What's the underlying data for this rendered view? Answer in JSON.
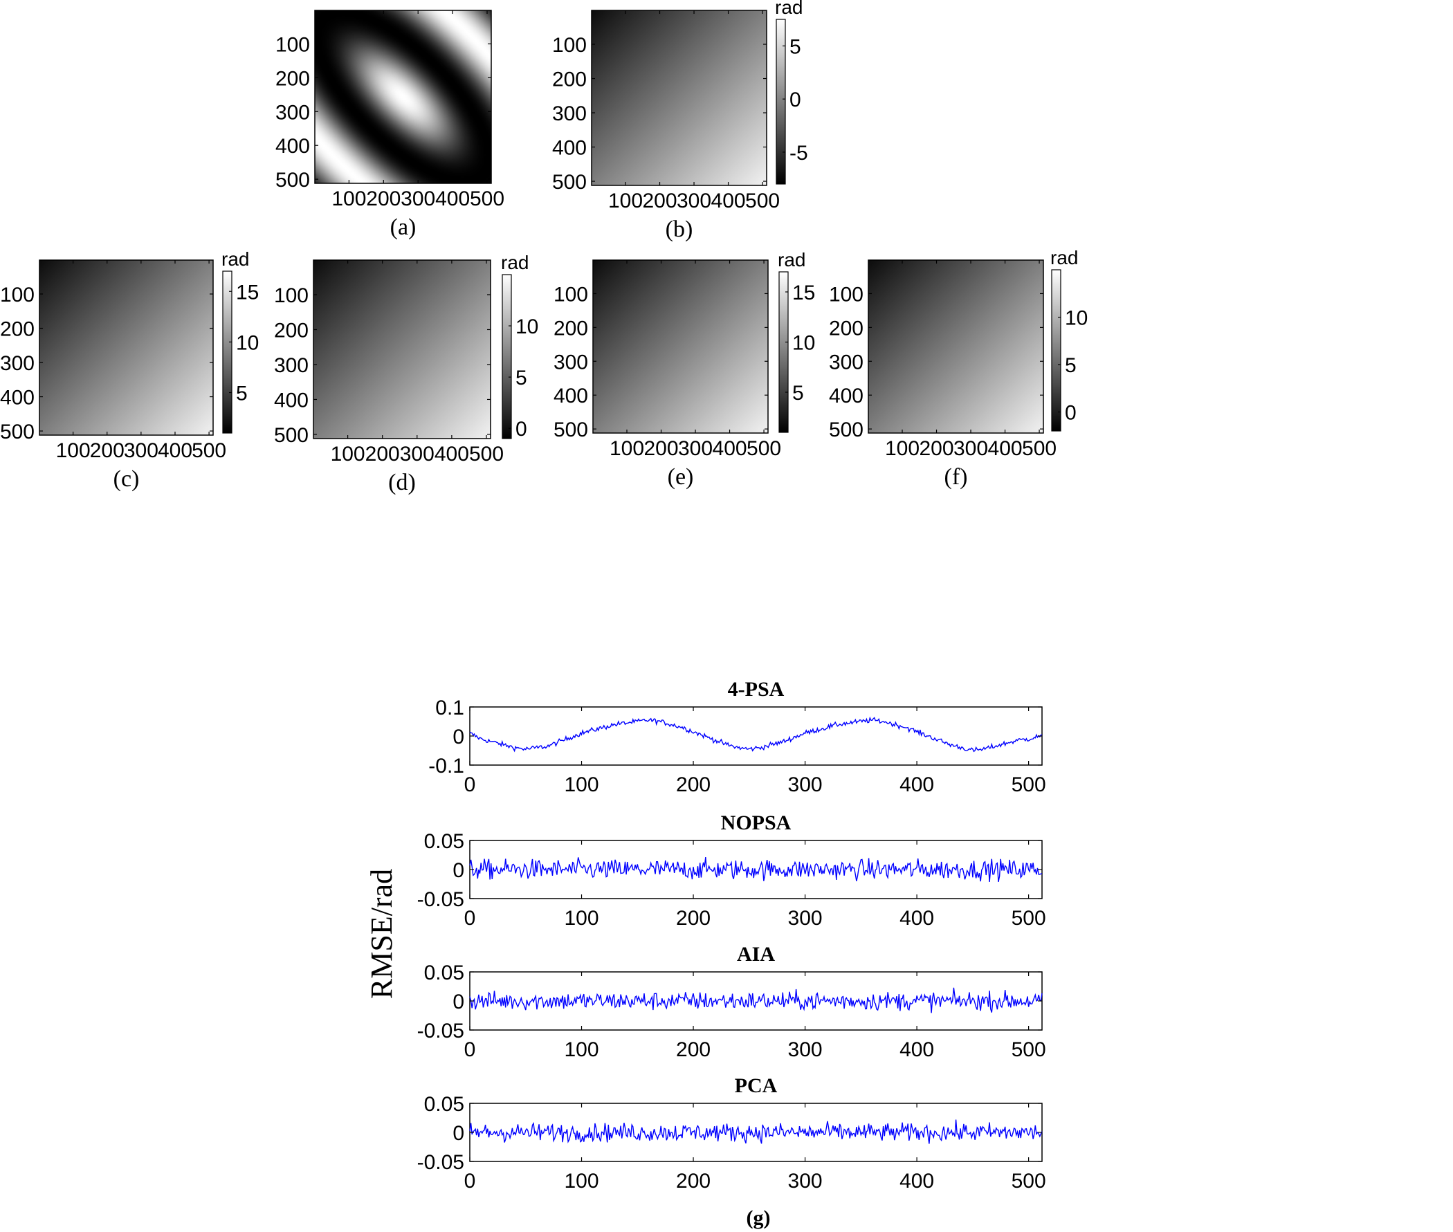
{
  "chart_data": [
    {
      "type": "heatmap",
      "id": "a",
      "caption": "(a)",
      "colormap": "gray",
      "pattern": "elliptical fringes along the main diagonal",
      "xticks": [
        "100",
        "200",
        "300",
        "400",
        "500"
      ],
      "yticks": [
        "100",
        "200",
        "300",
        "400",
        "500"
      ],
      "xlim": [
        1,
        512
      ],
      "ylim": [
        1,
        512
      ],
      "colorbar": null
    },
    {
      "type": "heatmap",
      "id": "b",
      "caption": "(b)",
      "colormap": "gray",
      "pattern": "diagonal linear ramp, dark top-left to light bottom-right",
      "xticks": [
        "100",
        "200",
        "300",
        "400",
        "500"
      ],
      "yticks": [
        "100",
        "200",
        "300",
        "400",
        "500"
      ],
      "xlim": [
        1,
        512
      ],
      "ylim": [
        1,
        512
      ],
      "colorbar": {
        "unit": "rad",
        "range": [
          -8,
          7.5
        ],
        "ticks": [
          5,
          0,
          -5
        ]
      }
    },
    {
      "type": "heatmap",
      "id": "c",
      "caption": "(c)",
      "colormap": "gray",
      "pattern": "diagonal linear ramp, dark top-left to light bottom-right",
      "xticks": [
        "100",
        "200",
        "300",
        "400",
        "500"
      ],
      "yticks": [
        "100",
        "200",
        "300",
        "400",
        "500"
      ],
      "xlim": [
        1,
        512
      ],
      "ylim": [
        1,
        512
      ],
      "colorbar": {
        "unit": "rad",
        "range": [
          1,
          17
        ],
        "ticks": [
          15,
          10,
          5
        ]
      }
    },
    {
      "type": "heatmap",
      "id": "d",
      "caption": "(d)",
      "colormap": "gray",
      "pattern": "diagonal linear ramp, dark top-left to light bottom-right",
      "xticks": [
        "100",
        "200",
        "300",
        "400",
        "500"
      ],
      "yticks": [
        "100",
        "200",
        "300",
        "400",
        "500"
      ],
      "xlim": [
        1,
        512
      ],
      "ylim": [
        1,
        512
      ],
      "colorbar": {
        "unit": "rad",
        "range": [
          -1,
          15
        ],
        "ticks": [
          10,
          5,
          0
        ]
      }
    },
    {
      "type": "heatmap",
      "id": "e",
      "caption": "(e)",
      "colormap": "gray",
      "pattern": "diagonal linear ramp, dark top-left to light bottom-right",
      "xticks": [
        "100",
        "200",
        "300",
        "400",
        "500"
      ],
      "yticks": [
        "100",
        "200",
        "300",
        "400",
        "500"
      ],
      "xlim": [
        1,
        512
      ],
      "ylim": [
        1,
        512
      ],
      "colorbar": {
        "unit": "rad",
        "range": [
          1,
          17
        ],
        "ticks": [
          15,
          10,
          5
        ]
      }
    },
    {
      "type": "heatmap",
      "id": "f",
      "caption": "(f)",
      "colormap": "gray",
      "pattern": "diagonal linear ramp, dark top-left to light bottom-right",
      "xticks": [
        "100",
        "200",
        "300",
        "400",
        "500"
      ],
      "yticks": [
        "100",
        "200",
        "300",
        "400",
        "500"
      ],
      "xlim": [
        1,
        512
      ],
      "ylim": [
        1,
        512
      ],
      "colorbar": {
        "unit": "rad",
        "range": [
          -2,
          15
        ],
        "ticks": [
          10,
          5,
          0
        ]
      }
    },
    {
      "type": "line",
      "id": "g",
      "caption": "(g)",
      "ylabel": "RMSE/rad",
      "color": "#0000ff",
      "xlim": [
        0,
        512
      ],
      "xticks": [
        0,
        100,
        200,
        300,
        400,
        500
      ],
      "panels": [
        {
          "title": "4-PSA",
          "ylim": [
            -0.1,
            0.1
          ],
          "yticks": [
            "0.1",
            "0",
            "-0.1"
          ],
          "x": [
            0,
            10,
            20,
            30,
            40,
            50,
            60,
            70,
            80,
            90,
            100,
            110,
            120,
            130,
            140,
            150,
            160,
            170,
            180,
            190,
            200,
            210,
            220,
            230,
            240,
            250,
            260,
            270,
            280,
            290,
            300,
            310,
            320,
            330,
            340,
            350,
            360,
            370,
            380,
            390,
            400,
            410,
            420,
            430,
            440,
            450,
            460,
            470,
            480,
            490,
            500,
            510
          ],
          "values": [
            0.01,
            -0.01,
            -0.02,
            -0.03,
            -0.04,
            -0.045,
            -0.04,
            -0.035,
            -0.02,
            -0.005,
            0.01,
            0.02,
            0.03,
            0.04,
            0.045,
            0.05,
            0.055,
            0.05,
            0.04,
            0.03,
            0.015,
            0.0,
            -0.015,
            -0.03,
            -0.04,
            -0.045,
            -0.04,
            -0.03,
            -0.02,
            -0.005,
            0.01,
            0.02,
            0.03,
            0.04,
            0.045,
            0.05,
            0.055,
            0.05,
            0.04,
            0.03,
            0.015,
            0.0,
            -0.015,
            -0.03,
            -0.04,
            -0.05,
            -0.045,
            -0.035,
            -0.025,
            -0.015,
            -0.01,
            0.0
          ],
          "noise": 0.006
        },
        {
          "title": "NOPSA",
          "ylim": [
            -0.05,
            0.05
          ],
          "yticks": [
            "0.05",
            "0",
            "-0.05"
          ],
          "x": [
            0,
            50,
            100,
            150,
            200,
            250,
            300,
            350,
            400,
            450,
            500,
            512
          ],
          "values": [
            0,
            0,
            0,
            0,
            0,
            0,
            0,
            0,
            0,
            0,
            0,
            0
          ],
          "noise": 0.012
        },
        {
          "title": "AIA",
          "ylim": [
            -0.05,
            0.05
          ],
          "yticks": [
            "0.05",
            "0",
            "-0.05"
          ],
          "x": [
            0,
            50,
            100,
            150,
            200,
            250,
            300,
            350,
            400,
            450,
            500,
            512
          ],
          "values": [
            0,
            0,
            0,
            0,
            0,
            0,
            0,
            0,
            0,
            0,
            0,
            0
          ],
          "noise": 0.011
        },
        {
          "title": "PCA",
          "ylim": [
            -0.05,
            0.05
          ],
          "yticks": [
            "0.05",
            "0",
            "-0.05"
          ],
          "x": [
            0,
            50,
            100,
            150,
            200,
            250,
            300,
            350,
            400,
            450,
            500,
            512
          ],
          "values": [
            0,
            0,
            0,
            0,
            0,
            0,
            0,
            0,
            0,
            0,
            0,
            0
          ],
          "noise": 0.011
        }
      ]
    }
  ]
}
